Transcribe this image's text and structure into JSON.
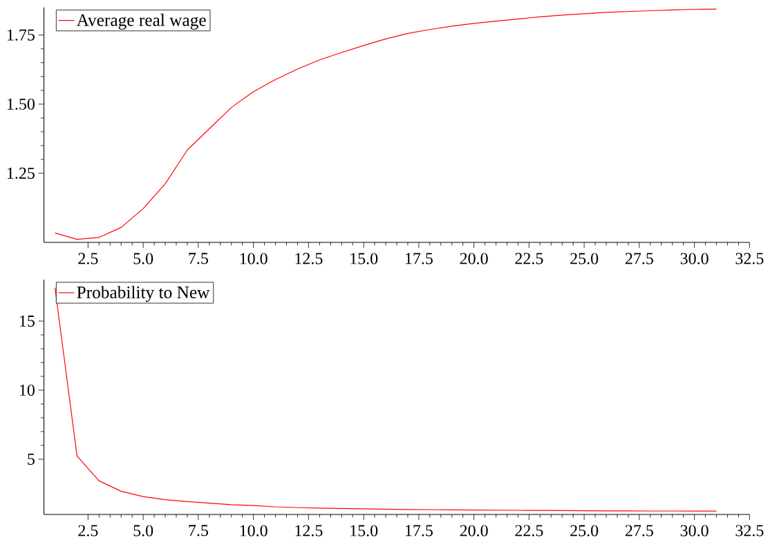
{
  "chart_data": [
    {
      "type": "line",
      "x": [
        1,
        2,
        3,
        4,
        5,
        6,
        7,
        8,
        9,
        10,
        11,
        12,
        13,
        14,
        15,
        16,
        17,
        18,
        19,
        20,
        21,
        22,
        23,
        24,
        25,
        26,
        27,
        28,
        29,
        30,
        31
      ],
      "series": [
        {
          "name": "Average real wage",
          "color": "#ff0000",
          "values": [
            1.034,
            1.011,
            1.018,
            1.054,
            1.122,
            1.212,
            1.334,
            1.411,
            1.488,
            1.545,
            1.589,
            1.627,
            1.66,
            1.687,
            1.712,
            1.736,
            1.756,
            1.77,
            1.782,
            1.792,
            1.8,
            1.808,
            1.816,
            1.822,
            1.827,
            1.832,
            1.835,
            1.838,
            1.841,
            1.843,
            1.844
          ]
        }
      ],
      "xlim": [
        0.5,
        32.5
      ],
      "xticks": [
        2.5,
        {
          "value": 5,
          "label": "5.0"
        },
        7.5,
        {
          "value": 10,
          "label": "10.0"
        },
        12.5,
        {
          "value": 15,
          "label": "15.0"
        },
        17.5,
        {
          "value": 20,
          "label": "20.0"
        },
        22.5,
        {
          "value": 25,
          "label": "25.0"
        },
        27.5,
        {
          "value": 30,
          "label": "30.0"
        },
        32.5
      ],
      "ylim": [
        1.0,
        1.85
      ],
      "yticks": [
        1.25,
        {
          "value": 1.5,
          "label": "1.50"
        },
        1.75
      ],
      "legend": "top left",
      "marker": "none",
      "line_style": "solid"
    },
    {
      "type": "line",
      "x": [
        1,
        2,
        3,
        4,
        5,
        6,
        7,
        8,
        9,
        10,
        11,
        12,
        13,
        14,
        15,
        16,
        17,
        18,
        19,
        20,
        21,
        22,
        23,
        24,
        25,
        26,
        27,
        28,
        29,
        30,
        31
      ],
      "series": [
        {
          "name": "Probability to New",
          "color": "#ff0000",
          "values": [
            17.41,
            5.23,
            3.43,
            2.68,
            2.29,
            2.07,
            1.93,
            1.82,
            1.71,
            1.64,
            1.55,
            1.5,
            1.46,
            1.43,
            1.41,
            1.38,
            1.36,
            1.35,
            1.33,
            1.32,
            1.31,
            1.3,
            1.29,
            1.28,
            1.27,
            1.26,
            1.26,
            1.25,
            1.25,
            1.24,
            1.24
          ]
        }
      ],
      "xlim": [
        0.5,
        32.5
      ],
      "xticks": [
        2.5,
        {
          "value": 5,
          "label": "5.0"
        },
        7.5,
        {
          "value": 10,
          "label": "10.0"
        },
        12.5,
        {
          "value": 15,
          "label": "15.0"
        },
        17.5,
        {
          "value": 20,
          "label": "20.0"
        },
        22.5,
        {
          "value": 25,
          "label": "25.0"
        },
        27.5,
        {
          "value": 30,
          "label": "30.0"
        },
        32.5
      ],
      "ylim": [
        1,
        18
      ],
      "yticks": [
        5,
        10,
        15
      ],
      "legend": "top left",
      "marker": "none",
      "line_style": "solid"
    }
  ]
}
